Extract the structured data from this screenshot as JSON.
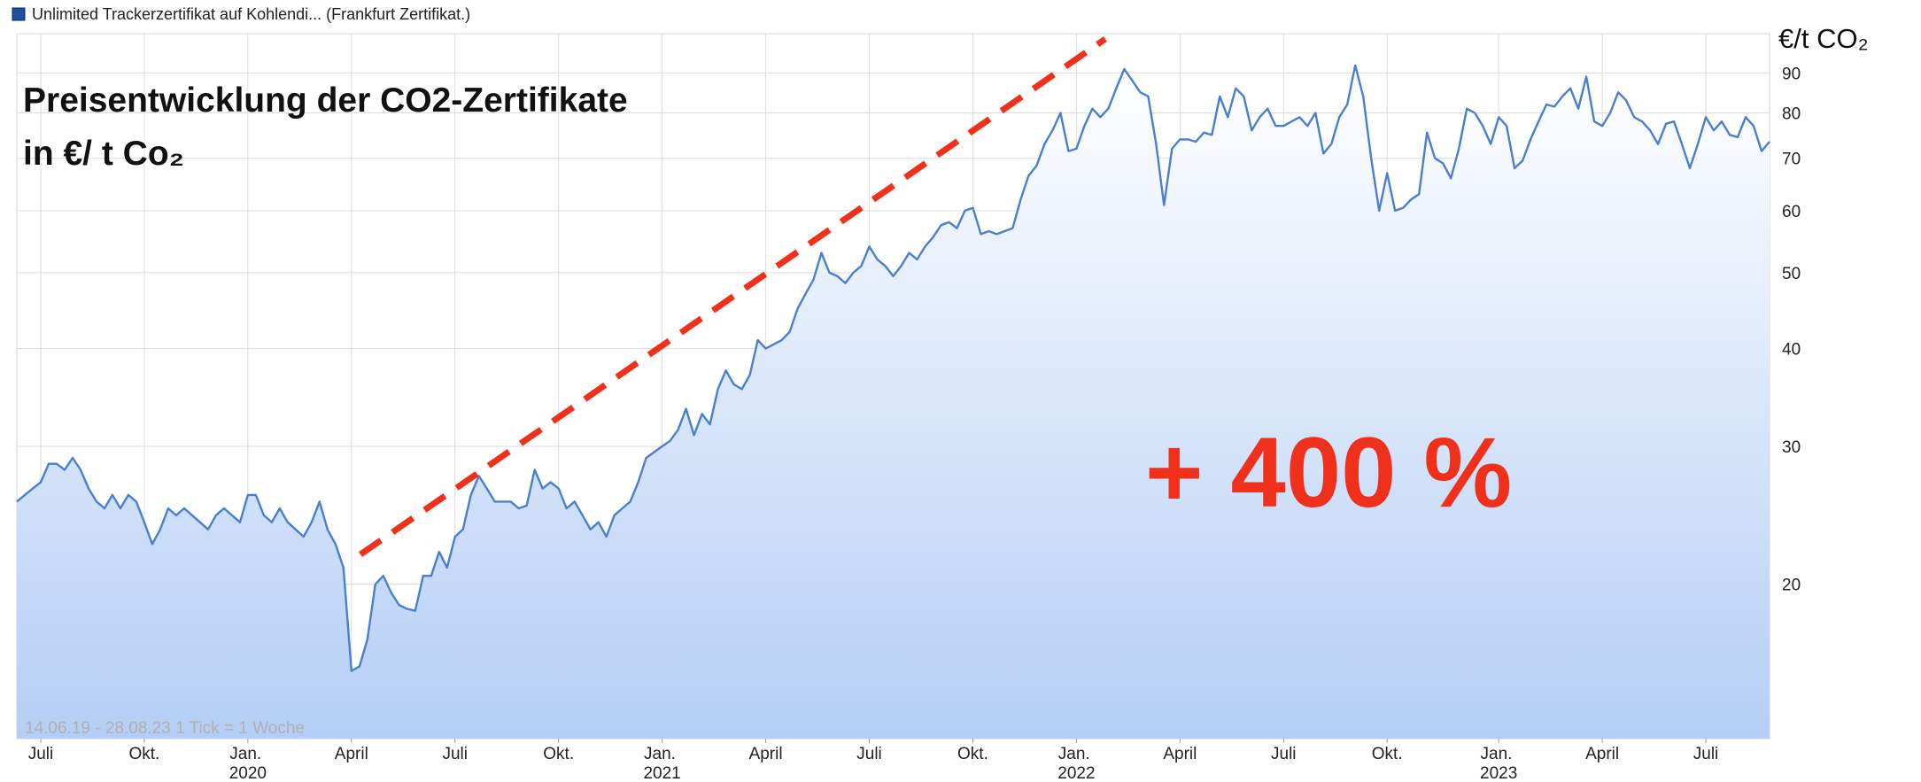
{
  "chart_data": {
    "type": "area",
    "legend_title": "Unlimited Trackerzertifikat auf Kohlendi... (Frankfurt Zertifikat.)",
    "title": "Preisentwicklung der CO2-Zertifikate",
    "subtitle": "in €/ t Co₂",
    "annotation": "+ 400 %",
    "y_label": "€/t CO₂",
    "footer": "14.06.19 - 28.08.23   1 Tick = 1 Woche",
    "log_scale": true,
    "grid": true,
    "ylim": [
      12.7,
      101
    ],
    "yticks": [
      20,
      30,
      40,
      50,
      60,
      70,
      80,
      90
    ],
    "categories": [
      null,
      null,
      null,
      "Juli",
      null,
      null,
      null,
      null,
      null,
      null,
      null,
      null,
      null,
      null,
      null,
      null,
      "Okt.",
      null,
      null,
      null,
      null,
      null,
      null,
      null,
      null,
      null,
      null,
      null,
      null,
      "Jan. 2020",
      null,
      null,
      null,
      null,
      null,
      null,
      null,
      null,
      null,
      null,
      null,
      null,
      "April",
      null,
      null,
      null,
      null,
      null,
      null,
      null,
      null,
      null,
      null,
      null,
      null,
      "Juli",
      null,
      null,
      null,
      null,
      null,
      null,
      null,
      null,
      null,
      null,
      null,
      null,
      "Okt.",
      null,
      null,
      null,
      null,
      null,
      null,
      null,
      null,
      null,
      null,
      null,
      null,
      "Jan. 2021",
      null,
      null,
      null,
      null,
      null,
      null,
      null,
      null,
      null,
      null,
      null,
      null,
      "April",
      null,
      null,
      null,
      null,
      null,
      null,
      null,
      null,
      null,
      null,
      null,
      null,
      "Juli",
      null,
      null,
      null,
      null,
      null,
      null,
      null,
      null,
      null,
      null,
      null,
      null,
      "Okt.",
      null,
      null,
      null,
      null,
      null,
      null,
      null,
      null,
      null,
      null,
      null,
      null,
      "Jan. 2022",
      null,
      null,
      null,
      null,
      null,
      null,
      null,
      null,
      null,
      null,
      null,
      null,
      "April",
      null,
      null,
      null,
      null,
      null,
      null,
      null,
      null,
      null,
      null,
      null,
      null,
      "Juli",
      null,
      null,
      null,
      null,
      null,
      null,
      null,
      null,
      null,
      null,
      null,
      null,
      "Okt.",
      null,
      null,
      null,
      null,
      null,
      null,
      null,
      null,
      null,
      null,
      null,
      null,
      null,
      "Jan. 2023",
      null,
      null,
      null,
      null,
      null,
      null,
      null,
      null,
      null,
      null,
      null,
      null,
      "April",
      null,
      null,
      null,
      null,
      null,
      null,
      null,
      null,
      null,
      null,
      null,
      null,
      "Juli",
      null,
      null,
      null,
      null,
      null,
      null,
      null,
      null
    ],
    "series": [
      {
        "name": "Unlimited Trackerzertifikat auf Kohlendi... (Frankfurt Zertifikat.)",
        "color": "#4a7fd0",
        "fill": "#b9d2f6",
        "values": [
          25.5,
          26,
          26.5,
          27,
          28.5,
          28.5,
          28,
          29,
          28,
          26.5,
          25.5,
          25,
          26,
          25,
          26,
          25.5,
          24,
          22.5,
          23.5,
          25,
          24.5,
          25,
          24.5,
          24,
          23.5,
          24.5,
          25,
          24.5,
          24,
          26,
          26,
          24.5,
          24,
          25,
          24,
          23.5,
          23,
          24,
          25.5,
          23.5,
          22.5,
          21,
          15.5,
          15.7,
          17,
          20,
          20.5,
          19.5,
          18.8,
          18.6,
          18.5,
          20.5,
          20.5,
          22,
          21,
          23,
          23.5,
          26,
          27.5,
          26.5,
          25.5,
          25.5,
          25.5,
          25,
          25.2,
          28,
          26.5,
          27,
          26.5,
          25,
          25.5,
          24.5,
          23.5,
          24,
          23,
          24.5,
          25,
          25.5,
          27,
          29,
          29.5,
          30,
          30.5,
          31.5,
          33.5,
          31,
          33,
          32,
          35.5,
          37.5,
          36,
          35.5,
          37,
          41,
          40,
          40.5,
          41,
          42,
          45,
          47,
          49,
          53,
          50,
          49.5,
          48.5,
          50,
          51,
          54,
          52,
          51,
          49.5,
          51,
          53,
          52,
          54,
          55.5,
          57.5,
          58,
          57,
          60,
          60.5,
          56,
          56.5,
          56,
          56.5,
          57,
          62,
          66.5,
          68.5,
          73,
          76,
          80,
          71.5,
          72,
          77,
          81,
          79,
          81,
          86,
          91,
          88,
          85,
          84,
          73,
          61,
          72,
          74,
          74,
          73.5,
          75.5,
          75,
          84,
          79,
          86,
          84,
          76,
          79,
          81,
          77,
          77,
          78,
          79,
          77,
          80,
          71,
          73,
          79,
          82,
          92,
          84,
          70,
          60,
          67,
          60,
          60.5,
          62,
          63,
          75.5,
          70,
          69,
          66,
          72,
          81,
          80,
          77,
          73,
          79,
          77,
          68,
          69.5,
          74,
          78,
          82,
          81.5,
          84,
          86,
          81,
          89,
          78,
          77,
          80,
          85,
          83,
          79,
          78,
          76,
          73,
          77.5,
          78,
          73,
          68,
          73,
          79,
          76,
          78,
          75,
          74.5,
          79,
          77,
          71.5,
          73.5
        ]
      }
    ]
  }
}
